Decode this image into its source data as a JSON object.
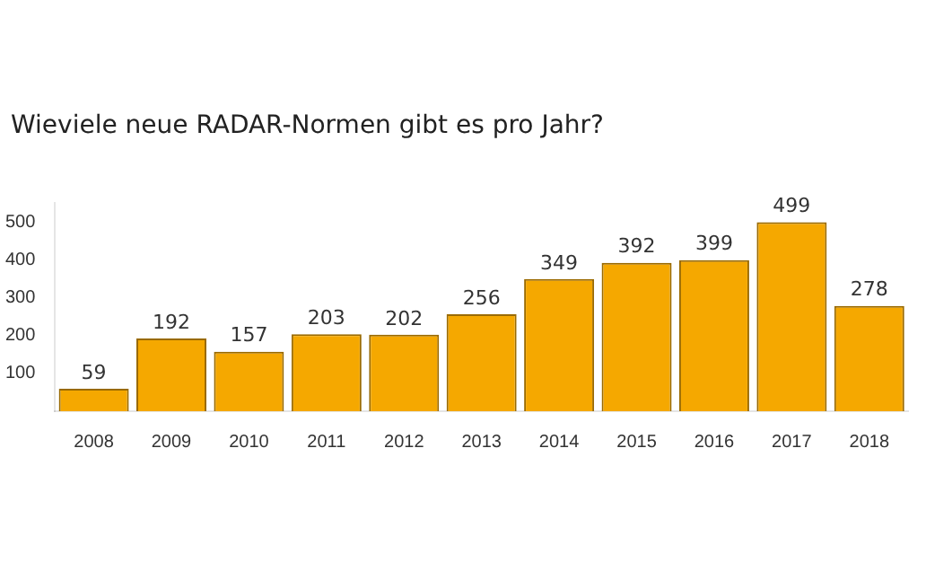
{
  "chart_data": {
    "type": "bar",
    "title": "Wieviele neue RADAR-Normen gibt es pro Jahr?",
    "categories": [
      "2008",
      "2009",
      "2010",
      "2011",
      "2012",
      "2013",
      "2014",
      "2015",
      "2016",
      "2017",
      "2018"
    ],
    "values": [
      59,
      192,
      157,
      203,
      202,
      256,
      349,
      392,
      399,
      499,
      278
    ],
    "color": "#f5a800",
    "ylim": [
      0,
      550
    ],
    "yticks": [
      100,
      200,
      300,
      400,
      500
    ],
    "data_labels": true,
    "grid": false,
    "legend": false
  }
}
